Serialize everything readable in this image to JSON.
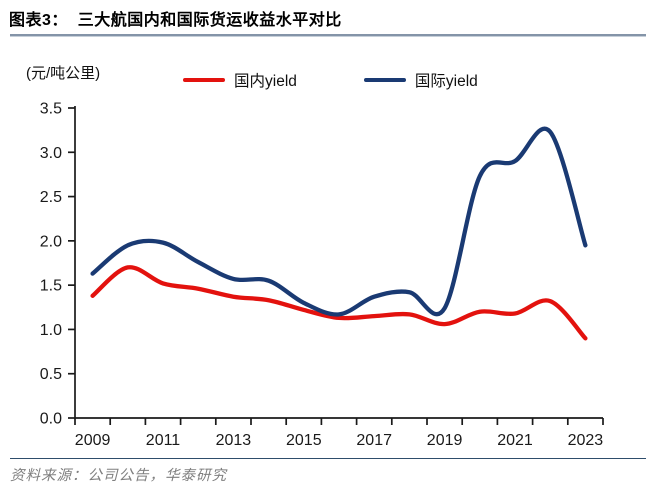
{
  "header": {
    "title": "图表3：  三大航国内和国际货运收益水平对比"
  },
  "chart": {
    "unit_label": "(元/吨公里)"
  },
  "chart_data": {
    "type": "line",
    "title": "三大航国内和国际货运收益水平对比",
    "unit": "元/吨公里",
    "x": [
      2009,
      2010,
      2011,
      2012,
      2013,
      2014,
      2015,
      2016,
      2017,
      2018,
      2019,
      2020,
      2021,
      2022,
      2023
    ],
    "series": [
      {
        "name": "国内yield",
        "color": "#e3120e",
        "values": [
          1.38,
          1.7,
          1.52,
          1.46,
          1.37,
          1.33,
          1.22,
          1.13,
          1.15,
          1.17,
          1.06,
          1.2,
          1.18,
          1.32,
          0.9
        ]
      },
      {
        "name": "国际yield",
        "color": "#1a3a73",
        "values": [
          1.63,
          1.95,
          1.98,
          1.76,
          1.57,
          1.55,
          1.3,
          1.17,
          1.37,
          1.42,
          1.24,
          2.73,
          2.9,
          3.23,
          1.95
        ]
      }
    ],
    "ylim": [
      0.0,
      3.5
    ],
    "ytick_step": 0.5,
    "ytick_labels": [
      "0.0",
      "0.5",
      "1.0",
      "1.5",
      "2.0",
      "2.5",
      "3.0",
      "3.5"
    ],
    "xtick_label_step": 2,
    "xtick_labels": [
      "2009",
      "2011",
      "2013",
      "2015",
      "2017",
      "2019",
      "2021",
      "2023"
    ],
    "grid": false,
    "legend_position": "top",
    "axis_color": "#1a1a1a"
  },
  "footer": {
    "source": "资料来源：公司公告，华泰研究"
  }
}
